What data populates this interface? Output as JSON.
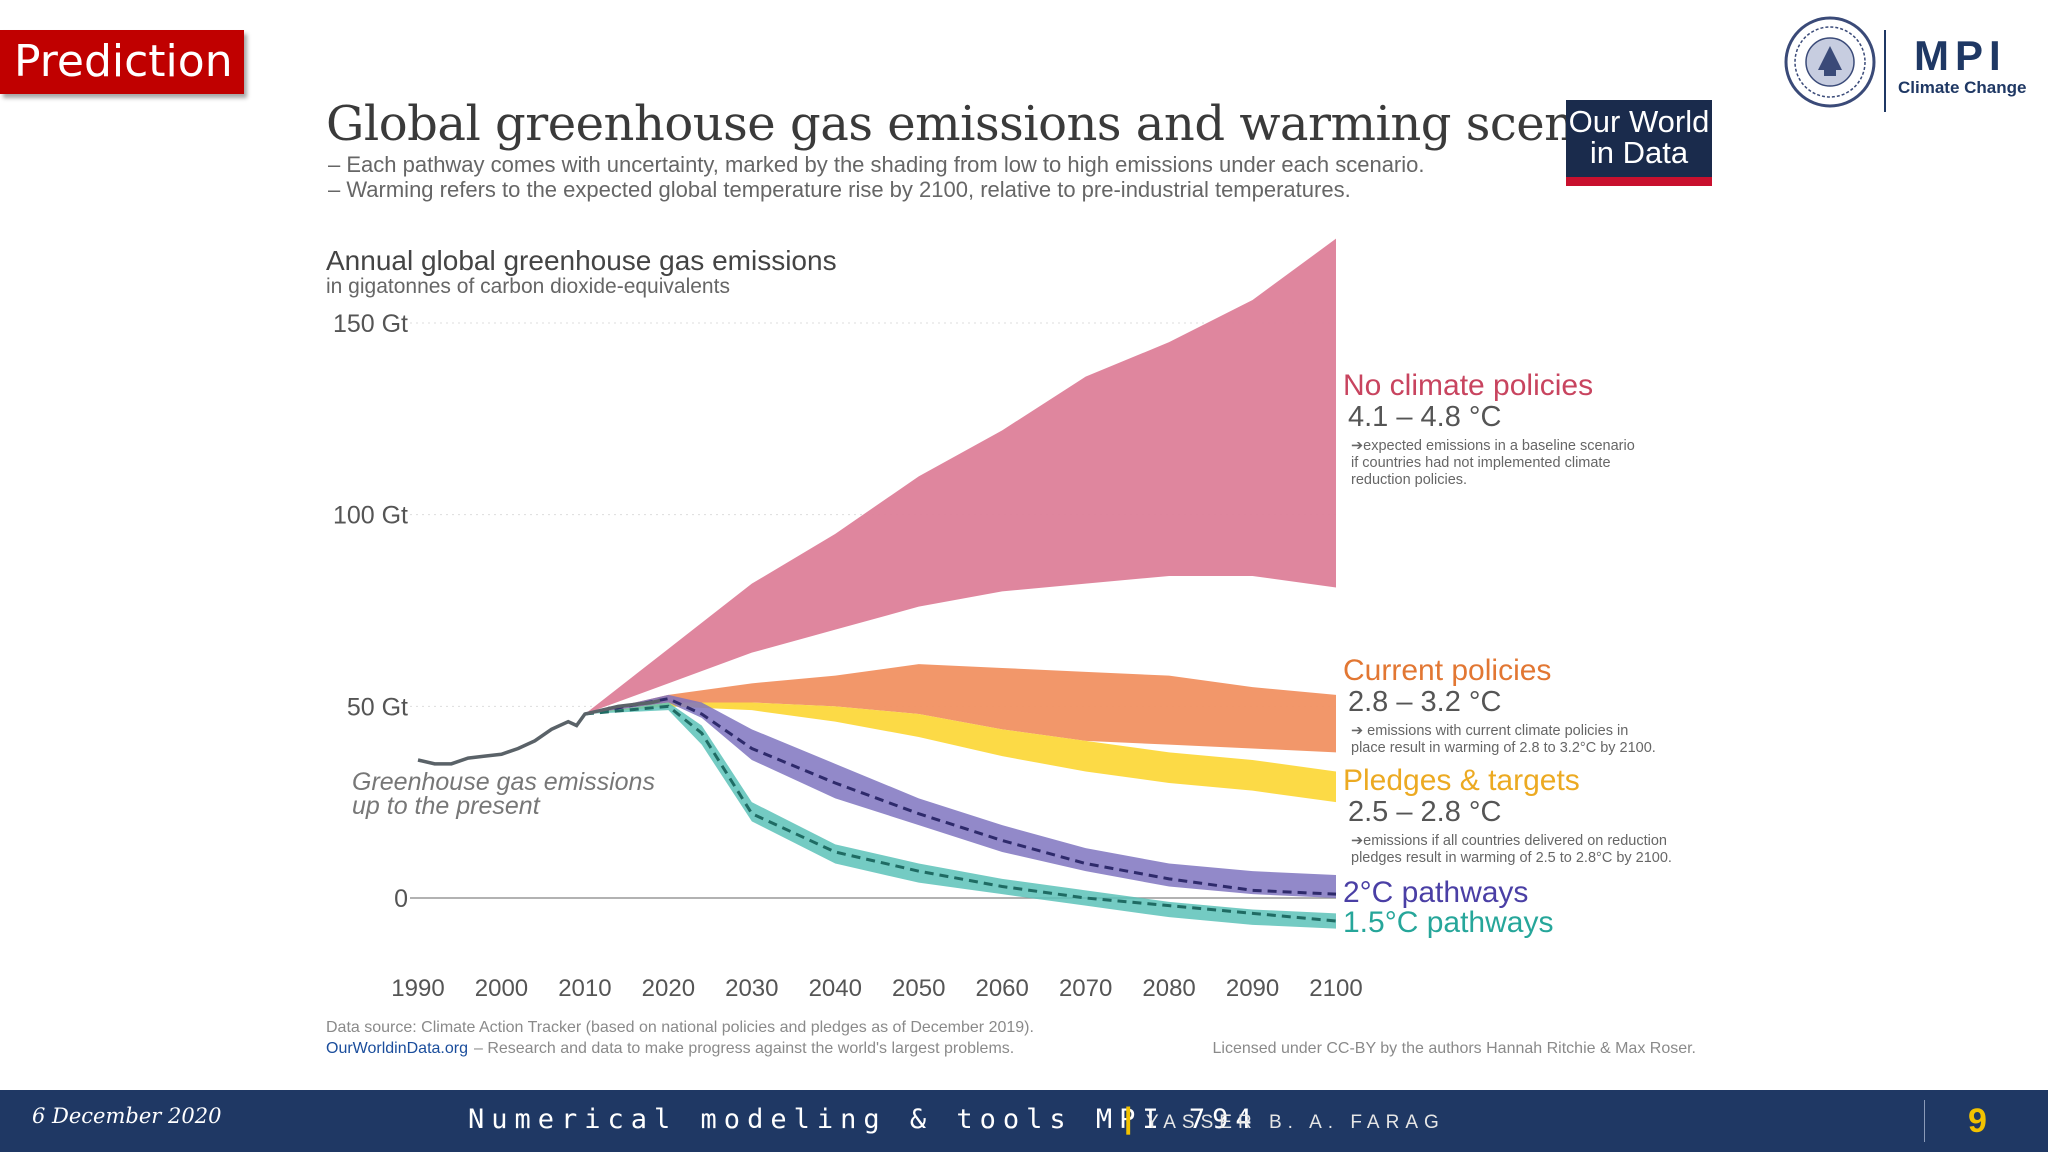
{
  "slide": {
    "badge": "Prediction",
    "date": "6 December 2020",
    "course": "Numerical modeling & tools  MPI 794",
    "separator": "|",
    "author": "YASSER B. A. FARAG",
    "page": "9"
  },
  "logo": {
    "name": "MPI",
    "subtitle": "Climate Change"
  },
  "owid_logo": {
    "line1": "Our World",
    "line2": "in Data"
  },
  "colors": {
    "no_policy": "#dd7f99",
    "current": "#f19162",
    "pledges": "#fcd83c",
    "two_c": "#7f74c0",
    "one_five": "#5cc2b8",
    "historic": "#5a6268",
    "no_policy_text": "#c8445f",
    "current_text": "#e27733",
    "pledges_text": "#ecaa22",
    "two_c_text": "#4a3fa5",
    "one_five_text": "#26a69a"
  },
  "chart_data": {
    "type": "area",
    "title": "Global greenhouse gas emissions and warming scenarios",
    "subtitle_lines": [
      "– Each pathway comes with uncertainty, marked by the shading from low to high emissions under each scenario.",
      "– Warming refers to the expected global temperature rise by 2100, relative to pre-industrial temperatures."
    ],
    "ylabel": "Annual global greenhouse gas emissions",
    "ylabel_unit": "in gigatonnes of carbon dioxide-equivalents",
    "ylim": [
      0,
      150
    ],
    "xlim": [
      1990,
      2100
    ],
    "y_ticks": [
      {
        "value": 0,
        "label": "0"
      },
      {
        "value": 50,
        "label": "50 Gt"
      },
      {
        "value": 100,
        "label": "100 Gt"
      },
      {
        "value": 150,
        "label": "150 Gt"
      }
    ],
    "x_ticks": [
      1990,
      2000,
      2010,
      2020,
      2030,
      2040,
      2050,
      2060,
      2070,
      2080,
      2090,
      2100
    ],
    "historical": {
      "label_lines": [
        "Greenhouse gas emissions",
        "up to the present"
      ],
      "x": [
        1990,
        1992,
        1994,
        1996,
        1998,
        2000,
        2002,
        2004,
        2006,
        2008,
        2009,
        2010,
        2012,
        2014,
        2016,
        2018,
        2019
      ],
      "y": [
        36,
        35,
        35,
        36.5,
        37,
        37.5,
        39,
        41,
        44,
        46,
        45,
        48,
        49,
        50,
        50.5,
        51,
        51.5
      ]
    },
    "series": [
      {
        "name": "No climate policies",
        "range_label": "4.1 – 4.8 °C",
        "note_lines": [
          "➔expected emissions in a baseline scenario",
          "if countries had not implemented climate",
          "reduction policies."
        ],
        "x": [
          2010,
          2020,
          2030,
          2040,
          2050,
          2060,
          2070,
          2080,
          2090,
          2100
        ],
        "upper": [
          48,
          65,
          82,
          95,
          110,
          122,
          136,
          145,
          156,
          172
        ],
        "lower": [
          48,
          56,
          64,
          70,
          76,
          80,
          82,
          84,
          84,
          81
        ]
      },
      {
        "name": "Current policies",
        "range_label": "2.8 – 3.2 °C",
        "note_lines": [
          "➔ emissions with current climate policies in",
          "place result in warming of 2.8 to 3.2°C by 2100."
        ],
        "x": [
          2010,
          2020,
          2030,
          2040,
          2050,
          2060,
          2070,
          2080,
          2090,
          2100
        ],
        "upper": [
          48,
          53,
          56,
          58,
          61,
          60,
          59,
          58,
          55,
          53
        ],
        "lower": [
          48,
          51,
          51,
          50,
          48,
          44,
          41,
          40,
          39,
          38
        ]
      },
      {
        "name": "Pledges & targets",
        "range_label": "2.5 – 2.8 °C",
        "note_lines": [
          "➔emissions if all countries delivered on reduction",
          "pledges result in warming of 2.5 to 2.8°C by 2100."
        ],
        "x": [
          2010,
          2020,
          2030,
          2040,
          2050,
          2060,
          2070,
          2080,
          2090,
          2100
        ],
        "upper": [
          48,
          51,
          51,
          50,
          48,
          44,
          41,
          38,
          36,
          33
        ],
        "lower": [
          48,
          50,
          49,
          46,
          42,
          37,
          33,
          30,
          28,
          25
        ]
      },
      {
        "name": "2°C pathways",
        "range_label": "",
        "x": [
          2010,
          2020,
          2024,
          2030,
          2040,
          2050,
          2060,
          2070,
          2080,
          2090,
          2100
        ],
        "upper": [
          48,
          53,
          51,
          44,
          35,
          26,
          19,
          13,
          9,
          7,
          6
        ],
        "lower": [
          48,
          51,
          47,
          36,
          26,
          19,
          12,
          7,
          3,
          1,
          0
        ],
        "median": [
          48,
          52,
          48,
          39,
          30,
          22,
          15,
          9,
          5,
          2,
          1
        ]
      },
      {
        "name": "1.5°C pathways",
        "range_label": "",
        "x": [
          2010,
          2020,
          2024,
          2030,
          2040,
          2050,
          2060,
          2070,
          2080,
          2090,
          2100
        ],
        "upper": [
          48,
          51,
          45,
          25,
          14,
          9,
          5,
          2,
          -1,
          -3,
          -4
        ],
        "lower": [
          48,
          49,
          40,
          20,
          9,
          4,
          1,
          -2,
          -5,
          -7,
          -8
        ],
        "median": [
          48,
          50,
          43,
          22,
          12,
          7,
          3,
          0,
          -2,
          -4,
          -6
        ]
      }
    ],
    "source_line": "Data source: Climate Action Tracker (based on national policies and pledges as of December 2019).",
    "owid_link": "OurWorldinData.org",
    "owid_tagline": "– Research and data to make progress against the world's largest problems.",
    "license": "Licensed under CC-BY by the authors Hannah Ritchie & Max Roser."
  }
}
